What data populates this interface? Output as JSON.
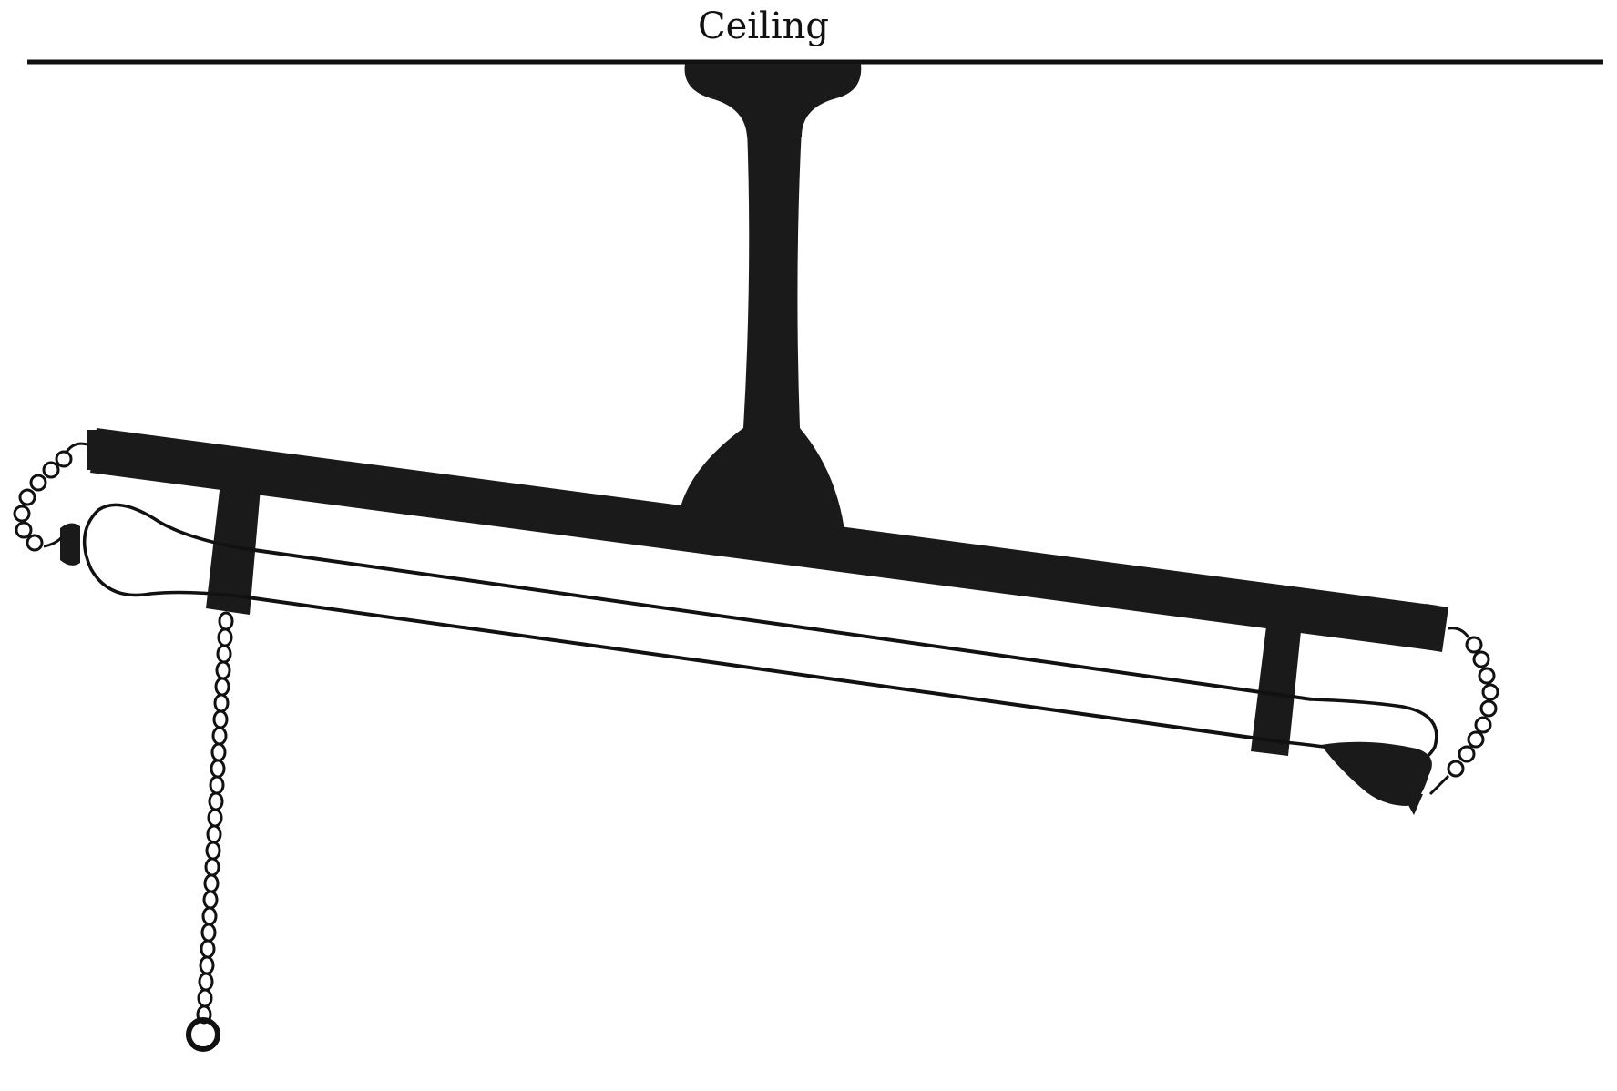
{
  "diagram": {
    "ceiling_label": "Ceiling",
    "colors": {
      "ink": "#111111",
      "fill": "#1a1a1a",
      "background": "#ffffff"
    }
  }
}
